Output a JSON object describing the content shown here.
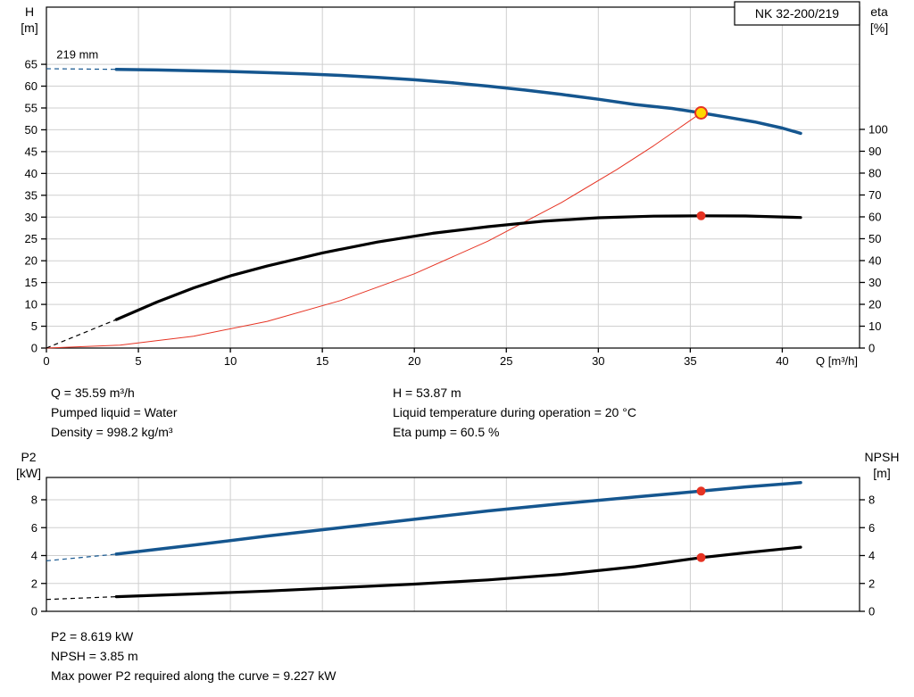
{
  "pump": {
    "model": "NK 32-200/219",
    "impeller_diameter": "219 mm"
  },
  "colors": {
    "curve_blue": "#15568f",
    "curve_black": "#000000",
    "curve_red": "#e63323",
    "marker_yellow": "#ffd800",
    "marker_red": "#e63323",
    "grid": "#cfcfcf",
    "axis": "#000000"
  },
  "info_top": {
    "left": [
      "Q = 35.59 m³/h",
      "Pumped liquid = Water",
      "Density = 998.2 kg/m³"
    ],
    "right": [
      "H = 53.87 m",
      "Liquid temperature during operation = 20 °C",
      "Eta pump = 60.5 %"
    ]
  },
  "info_bottom": [
    "P2 = 8.619 kW",
    "NPSH = 3.85 m",
    "Max power P2 required along the curve = 9.227 kW"
  ],
  "chart_data": [
    {
      "id": "performance",
      "type": "line",
      "title": "NK 32-200/219",
      "xlabel": "Q [m³/h]",
      "xlim": [
        0,
        44.2
      ],
      "x_ticks": [
        0,
        5,
        10,
        15,
        20,
        25,
        30,
        35,
        40
      ],
      "show_x_labels": true,
      "axes": {
        "left": {
          "label": [
            "H",
            "[m]"
          ],
          "lim": [
            0,
            78.1
          ],
          "ticks": [
            0,
            5,
            10,
            15,
            20,
            25,
            30,
            35,
            40,
            45,
            50,
            55,
            60,
            65
          ]
        },
        "right": {
          "label": [
            "eta",
            "[%]"
          ],
          "lim": [
            0,
            155.9
          ],
          "ticks": [
            0,
            10,
            20,
            30,
            40,
            50,
            60,
            70,
            80,
            90,
            100
          ]
        }
      },
      "series": [
        {
          "name": "system-curve",
          "axis": "left",
          "color": "#e63323",
          "width": 1,
          "x": [
            0,
            4,
            8,
            12,
            16,
            20,
            24,
            28,
            31,
            33,
            35.59
          ],
          "y": [
            0,
            0.68,
            2.72,
            6.12,
            10.89,
            17.01,
            24.5,
            33.35,
            40.86,
            46.32,
            53.87
          ]
        },
        {
          "name": "head-curve",
          "axis": "left",
          "color": "#15568f",
          "width": 3.5,
          "dash_lead": {
            "x": [
              0,
              3.8
            ],
            "y": [
              64,
              63.85
            ]
          },
          "x": [
            3.8,
            6,
            8,
            10,
            12,
            14,
            16,
            18,
            20,
            22,
            24,
            26,
            28,
            30,
            32,
            34,
            35.59,
            37,
            38.5,
            40,
            41
          ],
          "y": [
            63.85,
            63.7,
            63.55,
            63.35,
            63.1,
            62.8,
            62.45,
            62,
            61.45,
            60.8,
            60,
            59.1,
            58.1,
            57,
            55.8,
            54.9,
            53.87,
            52.9,
            51.8,
            50.4,
            49.2
          ]
        },
        {
          "name": "efficiency-curve",
          "axis": "right",
          "color": "#000000",
          "width": 3.2,
          "dash_lead": {
            "x": [
              0,
              3.8
            ],
            "y": [
              0,
              13
            ]
          },
          "x": [
            3.8,
            6,
            8,
            10,
            12,
            15,
            18,
            21,
            24,
            27,
            30,
            33,
            35.59,
            38,
            41
          ],
          "y": [
            13,
            21,
            27.5,
            33,
            37.5,
            43.5,
            48.5,
            52.5,
            55.5,
            58,
            59.6,
            60.3,
            60.5,
            60.4,
            59.7
          ]
        }
      ],
      "markers": [
        {
          "name": "duty-point",
          "axis": "left",
          "x": 35.59,
          "y": 53.87,
          "r": 6.5,
          "fill": "#ffd800",
          "stroke": "#e63323"
        },
        {
          "name": "efficiency-point",
          "axis": "right",
          "x": 35.59,
          "y": 60.5,
          "r": 5,
          "fill": "#e63323"
        }
      ],
      "annotation": {
        "text": "219 mm",
        "x": 0.55,
        "y": 66.3
      }
    },
    {
      "id": "power-npsh",
      "type": "line",
      "xlim": [
        0,
        44.2
      ],
      "x_ticks": [
        0,
        5,
        10,
        15,
        20,
        25,
        30,
        35,
        40
      ],
      "show_x_labels": false,
      "axes": {
        "left": {
          "label": [
            "P2",
            "[kW]"
          ],
          "lim": [
            0,
            9.6
          ],
          "ticks": [
            0,
            2,
            4,
            6,
            8
          ]
        },
        "right": {
          "label": [
            "NPSH",
            "[m]"
          ],
          "lim": [
            0,
            9.6
          ],
          "ticks": [
            0,
            2,
            4,
            6,
            8
          ]
        }
      },
      "series": [
        {
          "name": "p2-curve",
          "axis": "left",
          "color": "#15568f",
          "width": 3.5,
          "dash_lead": {
            "x": [
              0,
              3.8
            ],
            "y": [
              3.62,
              4.1
            ]
          },
          "x": [
            3.8,
            8,
            12,
            16,
            20,
            24,
            28,
            32,
            35.59,
            38,
            41
          ],
          "y": [
            4.1,
            4.75,
            5.4,
            6.0,
            6.6,
            7.2,
            7.72,
            8.2,
            8.619,
            8.92,
            9.227
          ]
        },
        {
          "name": "npsh-curve",
          "axis": "right",
          "color": "#000000",
          "width": 3.2,
          "dash_lead": {
            "x": [
              0,
              3.8
            ],
            "y": [
              0.85,
              1.05
            ]
          },
          "x": [
            3.8,
            8,
            12,
            16,
            20,
            24,
            28,
            32,
            35.59,
            38,
            41
          ],
          "y": [
            1.05,
            1.25,
            1.45,
            1.7,
            1.95,
            2.25,
            2.65,
            3.2,
            3.85,
            4.2,
            4.6
          ]
        }
      ],
      "markers": [
        {
          "name": "p2-point",
          "axis": "left",
          "x": 35.59,
          "y": 8.619,
          "r": 5,
          "fill": "#e63323"
        },
        {
          "name": "npsh-point",
          "axis": "right",
          "x": 35.59,
          "y": 3.85,
          "r": 5,
          "fill": "#e63323"
        }
      ]
    }
  ]
}
